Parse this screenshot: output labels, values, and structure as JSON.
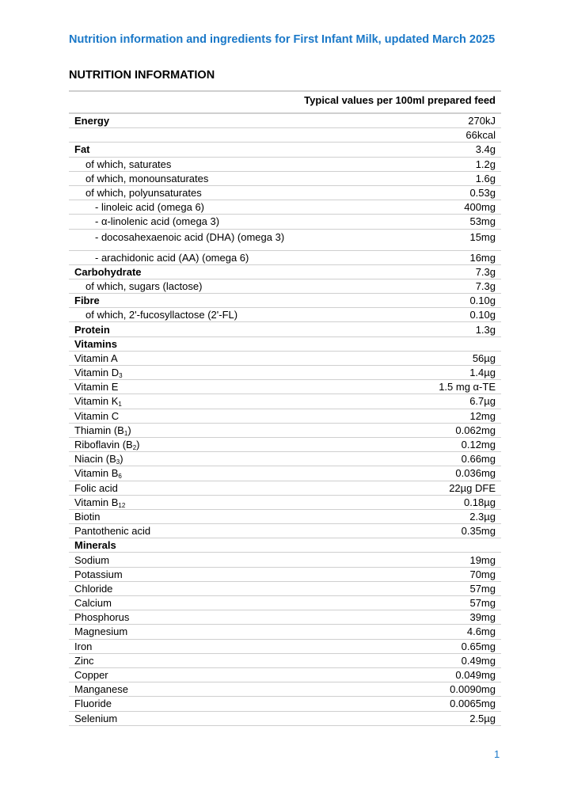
{
  "title": "Nutrition information and ingredients for First Infant Milk, updated March 2025",
  "section_heading": "NUTRITION INFORMATION",
  "table": {
    "column_header": "Typical values per 100ml prepared feed",
    "rows": [
      {
        "label": "Energy",
        "value": "270kJ",
        "level": 0,
        "bold": true
      },
      {
        "label": "",
        "value": "66kcal",
        "level": 0
      },
      {
        "label": "Fat",
        "value": "3.4g",
        "level": 0,
        "bold": true
      },
      {
        "label": "of which, saturates",
        "value": "1.2g",
        "level": 1
      },
      {
        "label": "of which, monounsaturates",
        "value": "1.6g",
        "level": 1
      },
      {
        "label": "of which, polyunsaturates",
        "value": "0.53g",
        "level": 1
      },
      {
        "label": "- linoleic acid (omega 6)",
        "value": "400mg",
        "level": 2
      },
      {
        "label": "- α-linolenic acid (omega 3)",
        "value": "53mg",
        "level": 2
      },
      {
        "label": "- docosahexaenoic acid (DHA) (omega 3)",
        "value": "15mg",
        "level": 2,
        "tall": true
      },
      {
        "label": "- arachidonic acid (AA) (omega 6)",
        "value": "16mg",
        "level": 2
      },
      {
        "label": "Carbohydrate",
        "value": "7.3g",
        "level": 0,
        "bold": true
      },
      {
        "label": "of which, sugars (lactose)",
        "value": "7.3g",
        "level": 1
      },
      {
        "label": "Fibre",
        "value": "0.10g",
        "level": 0,
        "bold": true
      },
      {
        "label": "of which, 2'-fucosyllactose (2'-FL)",
        "value": "0.10g",
        "level": 1
      },
      {
        "label": "Protein",
        "value": "1.3g",
        "level": 0,
        "bold": true
      },
      {
        "label": "Vitamins",
        "value": "",
        "level": 0,
        "bold": true
      },
      {
        "label": "Vitamin A",
        "value": "56µg",
        "level": 0
      },
      {
        "label": "Vitamin D",
        "sub": "3",
        "value": "1.4µg",
        "level": 0
      },
      {
        "label": "Vitamin E",
        "value": "1.5 mg α-TE",
        "level": 0
      },
      {
        "label": "Vitamin K",
        "sub": "1",
        "value": "6.7µg",
        "level": 0
      },
      {
        "label": "Vitamin C",
        "value": "12mg",
        "level": 0
      },
      {
        "label": "Thiamin (B",
        "sub": "1",
        "suffix": ")",
        "value": "0.062mg",
        "level": 0
      },
      {
        "label": "Riboflavin (B",
        "sub": "2",
        "suffix": ")",
        "value": "0.12mg",
        "level": 0
      },
      {
        "label": "Niacin (B",
        "sub": "3",
        "suffix": ")",
        "value": "0.66mg",
        "level": 0
      },
      {
        "label": "Vitamin B",
        "sub": "6",
        "value": "0.036mg",
        "level": 0
      },
      {
        "label": "Folic acid",
        "value": "22µg DFE",
        "level": 0
      },
      {
        "label": "Vitamin B",
        "sub": "12",
        "value": "0.18µg",
        "level": 0
      },
      {
        "label": "Biotin",
        "value": "2.3µg",
        "level": 0
      },
      {
        "label": "Pantothenic acid",
        "value": "0.35mg",
        "level": 0
      },
      {
        "label": "Minerals",
        "value": "",
        "level": 0,
        "bold": true
      },
      {
        "label": "Sodium",
        "value": "19mg",
        "level": 0
      },
      {
        "label": "Potassium",
        "value": "70mg",
        "level": 0
      },
      {
        "label": "Chloride",
        "value": "57mg",
        "level": 0
      },
      {
        "label": "Calcium",
        "value": "57mg",
        "level": 0
      },
      {
        "label": "Phosphorus",
        "value": "39mg",
        "level": 0
      },
      {
        "label": "Magnesium",
        "value": "4.6mg",
        "level": 0
      },
      {
        "label": "Iron",
        "value": "0.65mg",
        "level": 0
      },
      {
        "label": "Zinc",
        "value": "0.49mg",
        "level": 0
      },
      {
        "label": "Copper",
        "value": "0.049mg",
        "level": 0
      },
      {
        "label": "Manganese",
        "value": "0.0090mg",
        "level": 0
      },
      {
        "label": "Fluoride",
        "value": "0.0065mg",
        "level": 0
      },
      {
        "label": "Selenium",
        "value": "2.5µg",
        "level": 0
      }
    ]
  },
  "page_number": "1",
  "colors": {
    "accent": "#1a78c8",
    "rule": "#cfcfcf"
  }
}
